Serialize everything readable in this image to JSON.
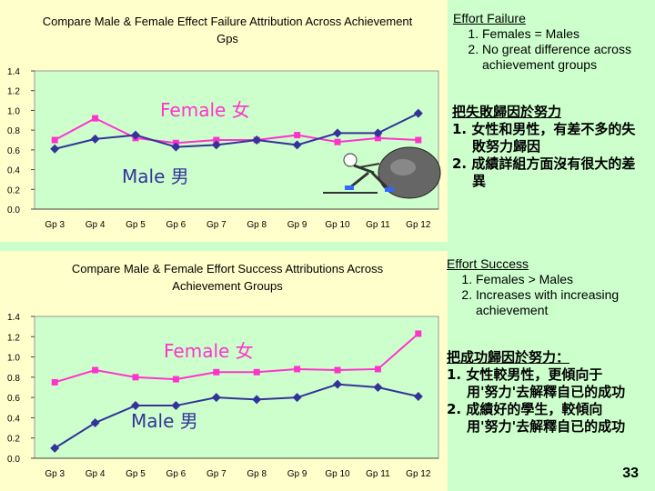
{
  "chart_data": [
    {
      "type": "line",
      "title": "Compare Male & Female Effect Failure Attribution Across Achievement Gps",
      "categories": [
        "Gp 3",
        "Gp 4",
        "Gp 5",
        "Gp 6",
        "Gp 7",
        "Gp 8",
        "Gp 9",
        "Gp 10",
        "Gp 11",
        "Gp 12"
      ],
      "yticks": [
        "0.0",
        "0.2",
        "0.4",
        "0.6",
        "0.8",
        "1.0",
        "1.2",
        "1.4"
      ],
      "ylim": [
        0,
        1.4
      ],
      "series": [
        {
          "name": "Female 女",
          "color": "#ff33cc",
          "marker": "square",
          "values": [
            0.7,
            0.92,
            0.72,
            0.67,
            0.7,
            0.7,
            0.75,
            0.68,
            0.72,
            0.7
          ]
        },
        {
          "name": "Male 男",
          "color": "#333399",
          "marker": "diamond",
          "values": [
            0.61,
            0.71,
            0.75,
            0.63,
            0.65,
            0.7,
            0.65,
            0.77,
            0.77,
            0.97
          ]
        }
      ]
    },
    {
      "type": "line",
      "title": "Compare Male & Female Effort Success Attributions Across Achievement Groups",
      "categories": [
        "Gp 3",
        "Gp 4",
        "Gp 5",
        "Gp 6",
        "Gp 7",
        "Gp 8",
        "Gp 9",
        "Gp 10",
        "Gp 11",
        "Gp 12"
      ],
      "yticks": [
        "0.0",
        "0.2",
        "0.4",
        "0.6",
        "0.8",
        "1.0",
        "1.2",
        "1.4"
      ],
      "ylim": [
        0,
        1.4
      ],
      "series": [
        {
          "name": "Female 女",
          "color": "#ff33cc",
          "marker": "square",
          "values": [
            0.75,
            0.87,
            0.8,
            0.78,
            0.85,
            0.85,
            0.88,
            0.87,
            0.88,
            1.23
          ]
        },
        {
          "name": "Male 男",
          "color": "#333399",
          "marker": "diamond",
          "values": [
            0.1,
            0.35,
            0.52,
            0.52,
            0.6,
            0.58,
            0.6,
            0.73,
            0.7,
            0.61
          ]
        }
      ]
    }
  ],
  "notes": {
    "failure_en": {
      "heading": "Effort Failure",
      "items": [
        "Females = Males",
        "No great difference across achievement groups"
      ]
    },
    "failure_cn": {
      "heading": "把失敗歸因於努力",
      "items": [
        "1. 女性和男性，有差不多的失敗努力歸因",
        "2. 成績詳組方面沒有很大的差異"
      ]
    },
    "success_en": {
      "heading": "Effort Success",
      "items": [
        "Females > Males",
        "Increases with increasing achievement"
      ]
    },
    "success_cn": {
      "heading": "把成功歸因於努力：",
      "items": [
        "1. 女性較男性，更傾向于用'努力'去解釋自已的成功",
        "2. 成績好的學生，較傾向用'努力'去解釋自已的成功"
      ]
    }
  },
  "page_number": "33",
  "illustration_icon": "cartoon-figure-pushing-boulder-icon"
}
